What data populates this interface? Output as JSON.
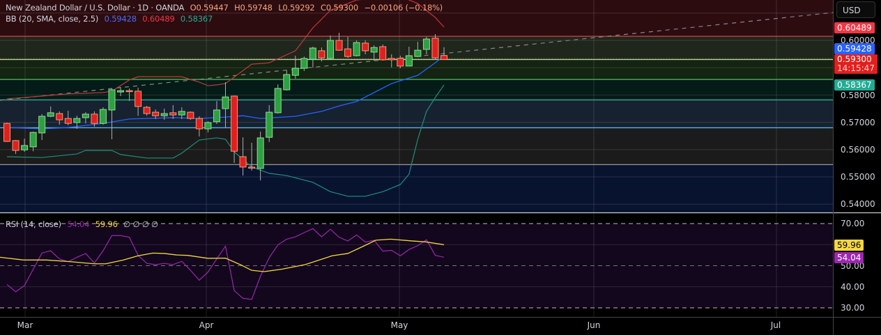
{
  "header": {
    "symbol": "New Zealand Dollar / U.S. Dollar · 1D · OANDA",
    "open": "O0.59447",
    "high": "H0.59748",
    "low": "L0.59292",
    "close": "C0.59300",
    "change": "−0.00106 (−0.18%)"
  },
  "bb_legend": {
    "label": "BB (20, SMA, close, 2.5)",
    "basis": "0.59428",
    "upper": "0.60489",
    "lower": "0.58367"
  },
  "rsi_legend": {
    "label": "RSI (14, close)",
    "rsi": "54.04",
    "ma": "59.96",
    "extras": "∅ ∅ ∅ ∅"
  },
  "currency_button": "USD",
  "price_axis": {
    "ticks": [
      "0.60000",
      "0.58000",
      "0.57000",
      "0.56000",
      "0.55000",
      "0.54000"
    ],
    "badges": {
      "bb_upper": "0.60489",
      "bb_basis": "0.59428",
      "last_price": "0.59300",
      "countdown": "14:15:47",
      "bb_lower": "0.58367"
    }
  },
  "rsi_axis": {
    "ticks": [
      "70.00",
      "50.00",
      "40.00",
      "30.00"
    ],
    "badges": {
      "ma": "59.96",
      "rsi": "54.04"
    }
  },
  "time_axis": [
    "Mar",
    "Apr",
    "May",
    "Jun",
    "Jul"
  ],
  "colors": {
    "up": "#2ea043",
    "down": "#e0201e",
    "bb_basis": "#2962ff",
    "bb_upper": "#f23645",
    "bb_lower": "#22ab94",
    "rsi": "#9c27b0",
    "rsi_ma": "#f5d742"
  },
  "chart_data": [
    {
      "type": "candlestick",
      "title": "New Zealand Dollar / U.S. Dollar · 1D · OANDA",
      "ylim": [
        0.535,
        0.615
      ],
      "ohlc": [
        [
          0.5696,
          0.5699,
          0.5628,
          0.563
        ],
        [
          0.5633,
          0.5635,
          0.5584,
          0.5597
        ],
        [
          0.5599,
          0.564,
          0.5592,
          0.5615
        ],
        [
          0.561,
          0.5666,
          0.5594,
          0.5663
        ],
        [
          0.5661,
          0.573,
          0.5635,
          0.5722
        ],
        [
          0.5722,
          0.5758,
          0.5719,
          0.5735
        ],
        [
          0.5732,
          0.574,
          0.5691,
          0.5709
        ],
        [
          0.5714,
          0.5742,
          0.5689,
          0.5696
        ],
        [
          0.5699,
          0.5724,
          0.5676,
          0.5714
        ],
        [
          0.5717,
          0.5737,
          0.5696,
          0.573
        ],
        [
          0.573,
          0.574,
          0.5684,
          0.5696
        ],
        [
          0.5696,
          0.5755,
          0.5691,
          0.5747
        ],
        [
          0.5745,
          0.5824,
          0.5638,
          0.5819
        ],
        [
          0.5811,
          0.5829,
          0.5796,
          0.5816
        ],
        [
          0.5816,
          0.5824,
          0.5778,
          0.5814
        ],
        [
          0.5814,
          0.5827,
          0.5724,
          0.5758
        ],
        [
          0.5755,
          0.576,
          0.5724,
          0.5732
        ],
        [
          0.5737,
          0.5747,
          0.5712,
          0.5724
        ],
        [
          0.5724,
          0.575,
          0.5709,
          0.5732
        ],
        [
          0.5735,
          0.5763,
          0.5712,
          0.5727
        ],
        [
          0.5727,
          0.5755,
          0.5712,
          0.574
        ],
        [
          0.5737,
          0.574,
          0.5709,
          0.5714
        ],
        [
          0.5714,
          0.5722,
          0.5648,
          0.5676
        ],
        [
          0.5676,
          0.5704,
          0.5663,
          0.5699
        ],
        [
          0.5702,
          0.5778,
          0.5694,
          0.5745
        ],
        [
          0.575,
          0.5847,
          0.5681,
          0.5793
        ],
        [
          0.5796,
          0.5798,
          0.5551,
          0.5594
        ],
        [
          0.5574,
          0.5645,
          0.5505,
          0.5536
        ],
        [
          0.5536,
          0.5625,
          0.5523,
          0.5533
        ],
        [
          0.5531,
          0.5666,
          0.5487,
          0.5643
        ],
        [
          0.5645,
          0.5763,
          0.5628,
          0.5737
        ],
        [
          0.5735,
          0.5839,
          0.5732,
          0.5824
        ],
        [
          0.5819,
          0.589,
          0.5816,
          0.5875
        ],
        [
          0.5872,
          0.5944,
          0.586,
          0.5898
        ],
        [
          0.5898,
          0.5941,
          0.5888,
          0.5934
        ],
        [
          0.5931,
          0.5977,
          0.5901,
          0.5972
        ],
        [
          0.5962,
          0.5974,
          0.5923,
          0.5936
        ],
        [
          0.5934,
          0.6018,
          0.5931,
          0.6
        ],
        [
          0.6,
          0.6028,
          0.5962,
          0.5964
        ],
        [
          0.5969,
          0.6013,
          0.5936,
          0.5941
        ],
        [
          0.5944,
          0.6,
          0.5941,
          0.5992
        ],
        [
          0.599,
          0.6,
          0.5949,
          0.5962
        ],
        [
          0.5957,
          0.5982,
          0.5926,
          0.5974
        ],
        [
          0.5977,
          0.5985,
          0.5926,
          0.5929
        ],
        [
          0.5934,
          0.5949,
          0.5901,
          0.5929
        ],
        [
          0.5934,
          0.5944,
          0.5898,
          0.5906
        ],
        [
          0.5906,
          0.5977,
          0.5906,
          0.5944
        ],
        [
          0.5941,
          0.5995,
          0.5939,
          0.5964
        ],
        [
          0.5967,
          0.6013,
          0.5949,
          0.6005
        ],
        [
          0.6008,
          0.6023,
          0.5929,
          0.5936
        ],
        [
          0.59447,
          0.59748,
          0.59292,
          0.593
        ]
      ],
      "bb_upper": [
        [
          0,
          0.5786
        ],
        [
          4,
          0.5796
        ],
        [
          7,
          0.5804
        ],
        [
          11,
          0.5809
        ],
        [
          12,
          0.5814
        ],
        [
          14,
          0.5855
        ],
        [
          15,
          0.5867
        ],
        [
          20,
          0.5867
        ],
        [
          22,
          0.5847
        ],
        [
          23,
          0.5834
        ],
        [
          24,
          0.5837
        ],
        [
          25,
          0.5842
        ],
        [
          28,
          0.5913
        ],
        [
          30,
          0.5918
        ],
        [
          33,
          0.5962
        ],
        [
          35,
          0.6046
        ],
        [
          37,
          0.611
        ],
        [
          40,
          0.6148
        ],
        [
          45,
          0.6161
        ],
        [
          46,
          0.6148
        ],
        [
          47,
          0.6135
        ],
        [
          49,
          0.6084
        ],
        [
          50,
          0.60489
        ]
      ],
      "bb_basis": [
        [
          0,
          0.5681
        ],
        [
          4,
          0.5676
        ],
        [
          7,
          0.5681
        ],
        [
          11,
          0.5696
        ],
        [
          14,
          0.5712
        ],
        [
          19,
          0.5717
        ],
        [
          22,
          0.5714
        ],
        [
          25,
          0.5719
        ],
        [
          27,
          0.5724
        ],
        [
          29,
          0.5714
        ],
        [
          33,
          0.5722
        ],
        [
          36,
          0.574
        ],
        [
          38,
          0.576
        ],
        [
          40,
          0.5776
        ],
        [
          42,
          0.5809
        ],
        [
          44,
          0.5842
        ],
        [
          45,
          0.5852
        ],
        [
          47,
          0.5872
        ],
        [
          49,
          0.5918
        ],
        [
          50,
          0.59428
        ]
      ],
      "bb_lower": [
        [
          0,
          0.5574
        ],
        [
          4,
          0.5571
        ],
        [
          8,
          0.5584
        ],
        [
          9,
          0.5597
        ],
        [
          12,
          0.5597
        ],
        [
          13,
          0.5582
        ],
        [
          16,
          0.5569
        ],
        [
          19,
          0.5569
        ],
        [
          20,
          0.5587
        ],
        [
          22,
          0.5635
        ],
        [
          24,
          0.5643
        ],
        [
          25,
          0.5638
        ],
        [
          26,
          0.5592
        ],
        [
          28,
          0.5536
        ],
        [
          30,
          0.5513
        ],
        [
          32,
          0.5505
        ],
        [
          35,
          0.548
        ],
        [
          37,
          0.5446
        ],
        [
          39,
          0.5429
        ],
        [
          41,
          0.5429
        ],
        [
          43,
          0.5446
        ],
        [
          45,
          0.5472
        ],
        [
          46,
          0.551
        ],
        [
          47,
          0.5638
        ],
        [
          48,
          0.574
        ],
        [
          49,
          0.5791
        ],
        [
          50,
          0.58367
        ]
      ],
      "levels": [
        0.6015,
        0.593,
        0.5857,
        0.5782,
        0.568,
        0.5545
      ]
    },
    {
      "type": "line",
      "title": "RSI (14, close)",
      "ylim": [
        25,
        75
      ],
      "reference_lines": [
        70,
        50,
        30
      ],
      "series": [
        {
          "name": "RSI",
          "values": [
            41.1,
            37.6,
            40.6,
            48.3,
            56.0,
            57.1,
            53.2,
            51.9,
            54.0,
            55.8,
            51.3,
            57.1,
            64.3,
            64.3,
            63.5,
            54.9,
            51.1,
            50.5,
            51.1,
            50.5,
            52.1,
            47.8,
            43.1,
            47.0,
            53.2,
            59.3,
            38.2,
            34.5,
            34.0,
            45.0,
            53.8,
            59.9,
            62.6,
            63.7,
            65.7,
            67.6,
            63.7,
            67.3,
            63.5,
            61.7,
            64.6,
            61.2,
            62.1,
            56.9,
            57.3,
            54.7,
            57.7,
            59.5,
            62.3,
            54.9,
            54.04
          ]
        },
        {
          "name": "RSI-based MA",
          "points": [
            [
              -0.8,
              54.0
            ],
            [
              1.9,
              52.7
            ],
            [
              4.5,
              52.7
            ],
            [
              7.3,
              51.9
            ],
            [
              10,
              50.9
            ],
            [
              11.3,
              50.9
            ],
            [
              13.3,
              52.7
            ],
            [
              15,
              54.7
            ],
            [
              16.7,
              56.0
            ],
            [
              18,
              55.8
            ],
            [
              19.4,
              55.1
            ],
            [
              20.7,
              54.9
            ],
            [
              23,
              53.5
            ],
            [
              25,
              53.6
            ],
            [
              26.7,
              50.5
            ],
            [
              28,
              47.8
            ],
            [
              29.4,
              47.2
            ],
            [
              31.4,
              48.3
            ],
            [
              34.1,
              50.5
            ],
            [
              37.2,
              54.7
            ],
            [
              39,
              55.8
            ],
            [
              40.8,
              59.3
            ],
            [
              42.2,
              62.1
            ],
            [
              43.9,
              62.6
            ],
            [
              46.2,
              61.8
            ],
            [
              47.9,
              61.3
            ],
            [
              50,
              59.96
            ]
          ]
        }
      ]
    }
  ]
}
